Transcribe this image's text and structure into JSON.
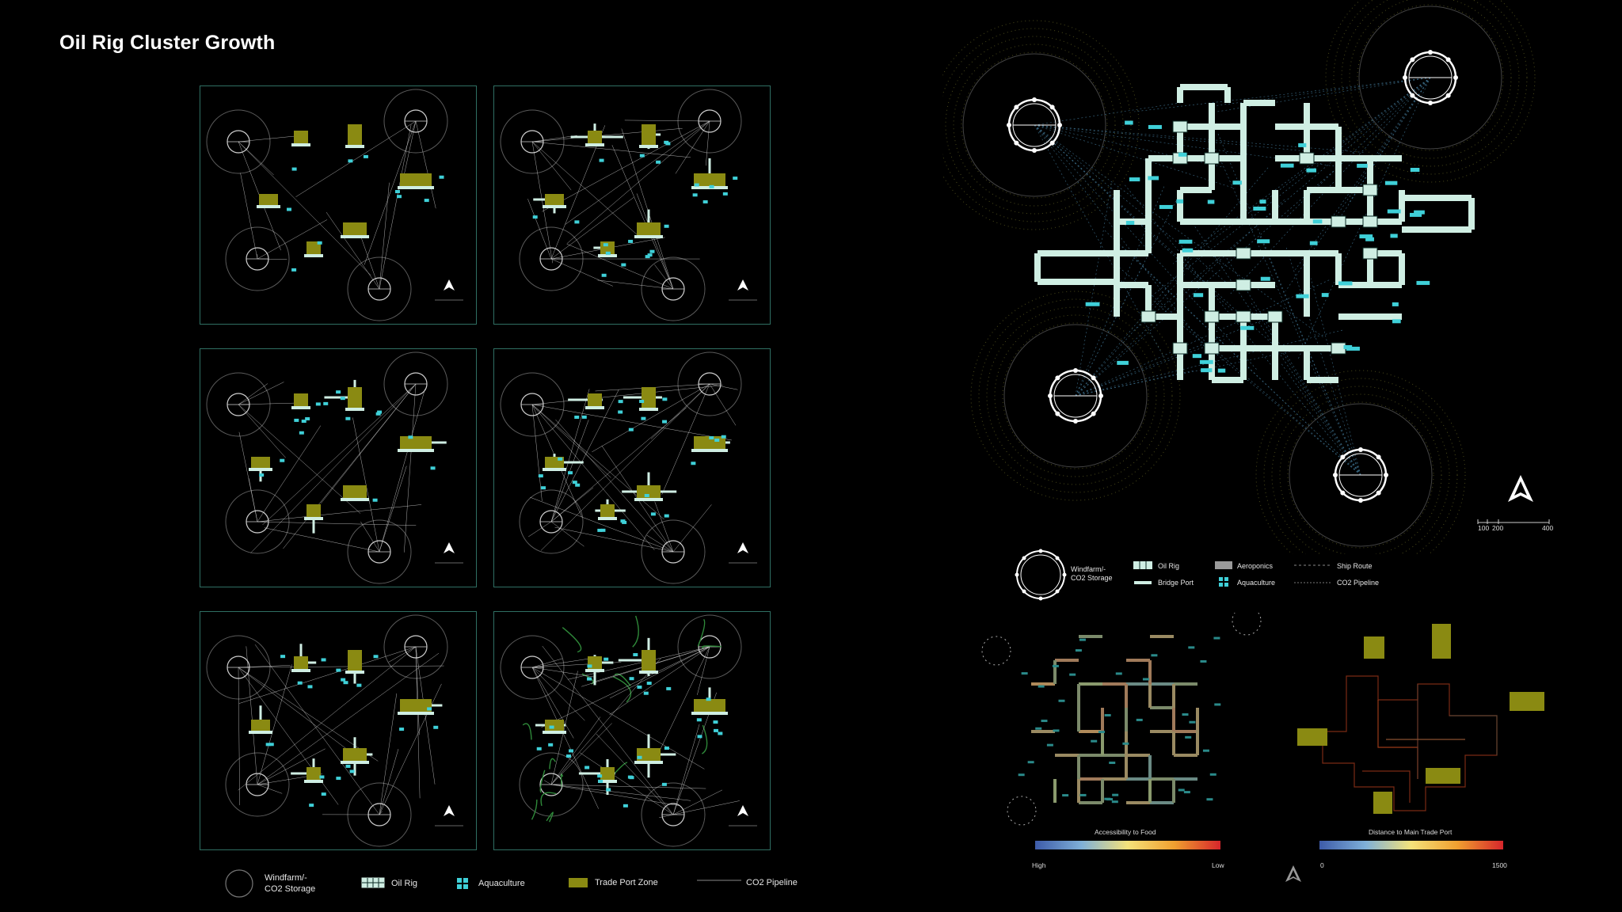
{
  "title": "Oil Rig Cluster Growth",
  "colors": {
    "background": "#000000",
    "oil_rig": "#cfeee3",
    "aquaculture": "#3fd0d8",
    "trade_port": "#8a8a12",
    "panel_border": "#2f6f63",
    "pipeline": "#d8d8d8",
    "green_route": "#2f8a3a"
  },
  "legend_left": {
    "items": [
      {
        "icon": "windfarm-circle-icon",
        "label_line1": "Windfarm/-",
        "label_line2": "CO2 Storage"
      },
      {
        "icon": "oil-rig-swatch-icon",
        "label": "Oil Rig"
      },
      {
        "icon": "aquaculture-swatch-icon",
        "label": "Aquaculture"
      },
      {
        "icon": "trade-port-swatch-icon",
        "label": "Trade Port Zone"
      },
      {
        "icon": "pipeline-line-icon",
        "label": "CO2 Pipeline"
      }
    ]
  },
  "legend_right": {
    "windfarm_line1": "Windfarm/-",
    "windfarm_line2": "CO2 Storage",
    "oil_rig": "Oil Rig",
    "bridge_port": "Bridge Port",
    "aeroponics": "Aeroponics",
    "aquaculture": "Aquaculture",
    "ship_route": "Ship Route",
    "co2_pipeline": "CO2 Pipeline"
  },
  "scale_bar": {
    "labels": [
      "100",
      "200",
      "400"
    ]
  },
  "map_food": {
    "title": "Accessibility to Food",
    "low_label": "Low",
    "high_label": "High"
  },
  "map_trade": {
    "title": "Distance to Main Trade Port",
    "min_label": "0",
    "max_label": "1500"
  }
}
